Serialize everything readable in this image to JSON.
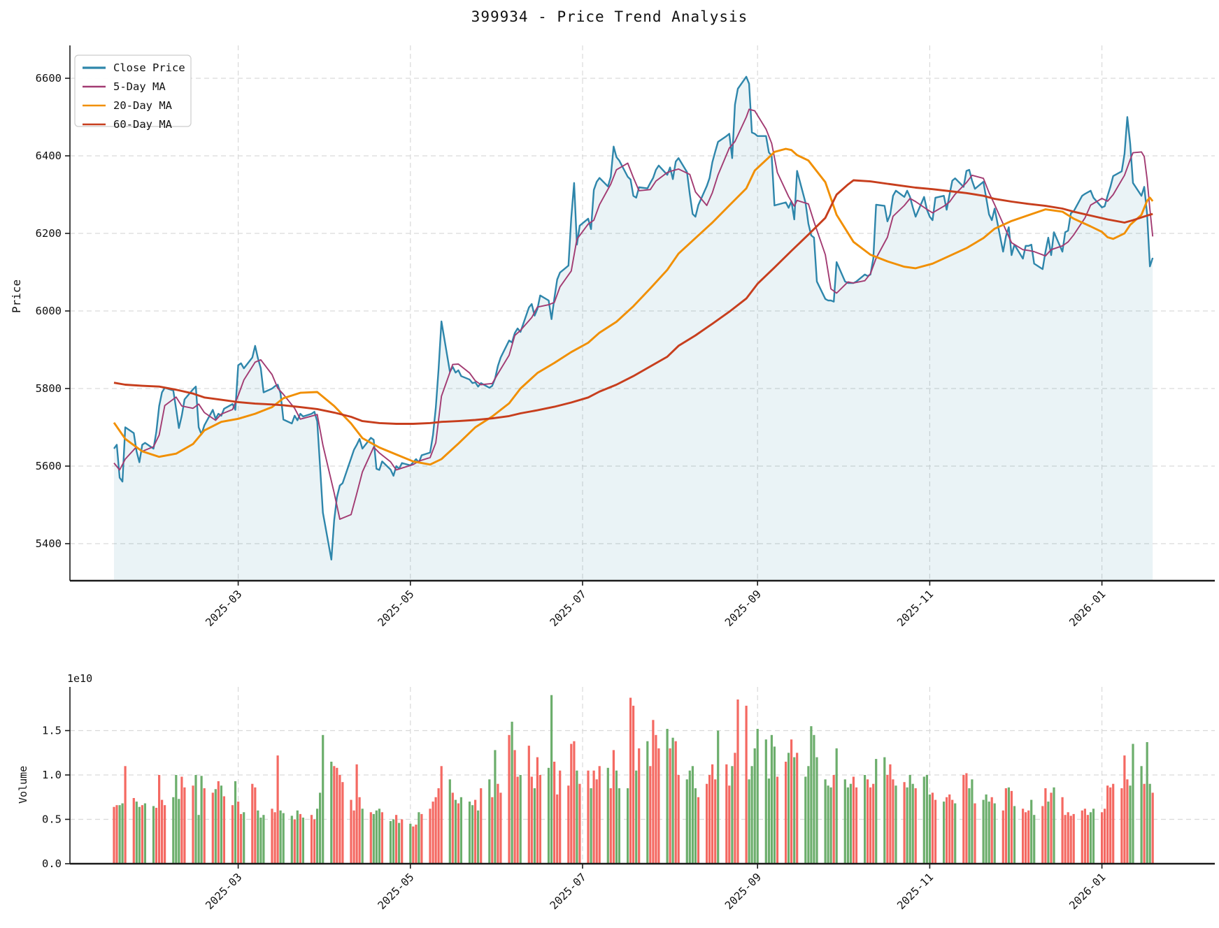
{
  "title": "399934 - Price Trend Analysis",
  "price_chart": {
    "ylabel": "Price",
    "yticks": [
      5400,
      5600,
      5800,
      6000,
      6200,
      6400,
      6600
    ],
    "legend": [
      {
        "label": "Close Price",
        "color": "#2E86AB"
      },
      {
        "label": "5-Day MA",
        "color": "#A23B72"
      },
      {
        "label": "20-Day MA",
        "color": "#F18F01"
      },
      {
        "label": "60-Day MA",
        "color": "#C73E1D"
      }
    ]
  },
  "volume_chart": {
    "ylabel": "Volume",
    "offset_label": "1e10",
    "ytick_labels": [
      "0.0",
      "0.5",
      "1.0",
      "1.5"
    ],
    "ytick_values": [
      0,
      50,
      100,
      150
    ]
  },
  "xticks": [
    {
      "label": "2025-03",
      "day": 44
    },
    {
      "label": "2025-05",
      "day": 105
    },
    {
      "label": "2025-07",
      "day": 166
    },
    {
      "label": "2025-09",
      "day": 228
    },
    {
      "label": "2025-11",
      "day": 289
    },
    {
      "label": "2026-01",
      "day": 350
    }
  ],
  "chart_data": {
    "type": "line+bar",
    "x_mode": "trading-days (5 per week), start 2025-01-16, end 2026-01-22",
    "price_ylim": [
      5300,
      6690
    ],
    "volume_unit": "0.01e10",
    "grid": "dashed",
    "legend_position": "upper-left",
    "colors": {
      "close": "#2E86AB",
      "ma5": "#A23B72",
      "ma20": "#F18F01",
      "ma60": "#C73E1D",
      "area_fill": "rgba(46,134,171,0.10)",
      "vol_up": "#f46962",
      "vol_down": "#6cae6c"
    },
    "close": [
      5645,
      5655,
      5570,
      5560,
      5700,
      5685,
      5638,
      5610,
      5655,
      5660,
      5645,
      5688,
      5755,
      5790,
      5802,
      5795,
      5748,
      5698,
      5730,
      5772,
      5798,
      5805,
      5700,
      5682,
      5705,
      5745,
      5722,
      5735,
      5730,
      5748,
      5760,
      5745,
      5860,
      5865,
      5852,
      5880,
      5910,
      5878,
      5852,
      5790,
      5800,
      5806,
      5810,
      5788,
      5720,
      5710,
      5730,
      5718,
      5735,
      5728,
      5735,
      5740,
      5715,
      5600,
      5480,
      5359,
      5460,
      5520,
      5550,
      5556,
      5620,
      5642,
      5655,
      5670,
      5645,
      5673,
      5668,
      5593,
      5590,
      5612,
      5591,
      5575,
      5600,
      5593,
      5608,
      5602,
      5610,
      5618,
      5609,
      5628,
      5635,
      5680,
      5750,
      5850,
      5973,
      5843,
      5856,
      5841,
      5847,
      5832,
      5823,
      5814,
      5816,
      5805,
      5814,
      5802,
      5807,
      5826,
      5858,
      5880,
      5924,
      5919,
      5943,
      5955,
      5946,
      6009,
      6018,
      5988,
      6005,
      6040,
      6027,
      5979,
      6032,
      6081,
      6099,
      6117,
      6240,
      6330,
      6171,
      6220,
      6238,
      6211,
      6312,
      6333,
      6343,
      6321,
      6346,
      6424,
      6397,
      6388,
      6346,
      6339,
      6297,
      6292,
      6319,
      6316,
      6330,
      6343,
      6364,
      6375,
      6351,
      6370,
      6340,
      6385,
      6394,
      6358,
      6301,
      6250,
      6243,
      6273,
      6322,
      6343,
      6384,
      6411,
      6436,
      6451,
      6457,
      6394,
      6532,
      6573,
      6604,
      6586,
      6460,
      6457,
      6451,
      6451,
      6409,
      6400,
      6272,
      6274,
      6280,
      6266,
      6283,
      6236,
      6361,
      6279,
      6225,
      6195,
      6189,
      6076,
      6031,
      6027,
      6027,
      6024,
      6126,
      6076,
      6072,
      6072,
      6072,
      6076,
      6094,
      6090,
      6094,
      6135,
      6274,
      6271,
      6231,
      6249,
      6297,
      6310,
      6294,
      6310,
      6294,
      6267,
      6243,
      6294,
      6261,
      6243,
      6234,
      6292,
      6297,
      6261,
      6300,
      6336,
      6342,
      6320,
      6361,
      6364,
      6336,
      6315,
      6333,
      6292,
      6249,
      6234,
      6264,
      6153,
      6193,
      6216,
      6144,
      6171,
      6135,
      6168,
      6168,
      6171,
      6122,
      6108,
      6153,
      6189,
      6144,
      6203,
      6153,
      6203,
      6207,
      6252,
      6257,
      6297,
      6302,
      6306,
      6310,
      6292,
      6267,
      6270,
      6297,
      6320,
      6348,
      6360,
      6405,
      6500,
      6432,
      6330,
      6297,
      6320,
      6250,
      6115,
      6137
    ],
    "ma5_keypoints": [
      [
        0,
        5608
      ],
      [
        2,
        5590
      ],
      [
        4,
        5618
      ],
      [
        6,
        5650
      ],
      [
        8,
        5638
      ],
      [
        10,
        5650
      ],
      [
        12,
        5680
      ],
      [
        14,
        5756
      ],
      [
        16,
        5778
      ],
      [
        18,
        5755
      ],
      [
        20,
        5749
      ],
      [
        22,
        5760
      ],
      [
        24,
        5738
      ],
      [
        26,
        5718
      ],
      [
        28,
        5734
      ],
      [
        30,
        5746
      ],
      [
        32,
        5782
      ],
      [
        34,
        5822
      ],
      [
        36,
        5868
      ],
      [
        38,
        5874
      ],
      [
        40,
        5836
      ],
      [
        42,
        5801
      ],
      [
        44,
        5785
      ],
      [
        46,
        5749
      ],
      [
        48,
        5721
      ],
      [
        50,
        5729
      ],
      [
        52,
        5733
      ],
      [
        54,
        5654
      ],
      [
        56,
        5531
      ],
      [
        58,
        5463
      ],
      [
        60,
        5475
      ],
      [
        62,
        5529
      ],
      [
        64,
        5585
      ],
      [
        66,
        5649
      ],
      [
        68,
        5634
      ],
      [
        70,
        5611
      ],
      [
        72,
        5590
      ],
      [
        74,
        5595
      ],
      [
        76,
        5604
      ],
      [
        78,
        5613
      ],
      [
        80,
        5622
      ],
      [
        82,
        5660
      ],
      [
        84,
        5780
      ],
      [
        86,
        5862
      ],
      [
        88,
        5863
      ],
      [
        90,
        5840
      ],
      [
        92,
        5820
      ],
      [
        94,
        5810
      ],
      [
        96,
        5813
      ],
      [
        98,
        5838
      ],
      [
        100,
        5886
      ],
      [
        102,
        5937
      ],
      [
        104,
        5950
      ],
      [
        106,
        5983
      ],
      [
        108,
        6010
      ],
      [
        110,
        6016
      ],
      [
        112,
        6022
      ],
      [
        114,
        6062
      ],
      [
        116,
        6103
      ],
      [
        118,
        6185
      ],
      [
        120,
        6224
      ],
      [
        122,
        6234
      ],
      [
        124,
        6274
      ],
      [
        126,
        6327
      ],
      [
        128,
        6364
      ],
      [
        130,
        6381
      ],
      [
        132,
        6344
      ],
      [
        134,
        6310
      ],
      [
        136,
        6313
      ],
      [
        138,
        6335
      ],
      [
        140,
        6357
      ],
      [
        142,
        6362
      ],
      [
        144,
        6366
      ],
      [
        146,
        6352
      ],
      [
        148,
        6307
      ],
      [
        150,
        6272
      ],
      [
        152,
        6305
      ],
      [
        154,
        6351
      ],
      [
        156,
        6420
      ],
      [
        158,
        6437
      ],
      [
        160,
        6500
      ],
      [
        161,
        6520
      ],
      [
        163,
        6516
      ],
      [
        165,
        6469
      ],
      [
        167,
        6432
      ],
      [
        169,
        6357
      ],
      [
        171,
        6295
      ],
      [
        173,
        6270
      ],
      [
        174,
        6285
      ],
      [
        176,
        6276
      ],
      [
        178,
        6230
      ],
      [
        180,
        6145
      ],
      [
        182,
        6057
      ],
      [
        184,
        6046
      ],
      [
        186,
        6075
      ],
      [
        188,
        6072
      ],
      [
        190,
        6078
      ],
      [
        192,
        6096
      ],
      [
        194,
        6136
      ],
      [
        196,
        6190
      ],
      [
        198,
        6244
      ],
      [
        200,
        6272
      ],
      [
        202,
        6290
      ],
      [
        204,
        6282
      ],
      [
        206,
        6262
      ],
      [
        208,
        6253
      ],
      [
        210,
        6270
      ],
      [
        212,
        6281
      ],
      [
        214,
        6301
      ],
      [
        216,
        6331
      ],
      [
        218,
        6350
      ],
      [
        220,
        6342
      ],
      [
        222,
        6305
      ],
      [
        224,
        6274
      ],
      [
        226,
        6208
      ],
      [
        228,
        6176
      ],
      [
        230,
        6158
      ],
      [
        232,
        6156
      ],
      [
        234,
        6153
      ],
      [
        236,
        6142
      ],
      [
        238,
        6158
      ],
      [
        240,
        6168
      ],
      [
        242,
        6178
      ],
      [
        244,
        6196
      ],
      [
        246,
        6240
      ],
      [
        248,
        6273
      ],
      [
        250,
        6290
      ],
      [
        252,
        6283
      ],
      [
        254,
        6300
      ],
      [
        256,
        6350
      ],
      [
        258,
        6390
      ],
      [
        259,
        6408
      ],
      [
        260,
        6410
      ],
      [
        261,
        6398
      ],
      [
        262,
        6340
      ],
      [
        263,
        6262
      ],
      [
        264,
        6192
      ]
    ],
    "ma20_keypoints": [
      [
        0,
        5712
      ],
      [
        4,
        5670
      ],
      [
        8,
        5638
      ],
      [
        12,
        5624
      ],
      [
        16,
        5632
      ],
      [
        20,
        5657
      ],
      [
        24,
        5692
      ],
      [
        28,
        5714
      ],
      [
        32,
        5722
      ],
      [
        36,
        5735
      ],
      [
        40,
        5752
      ],
      [
        44,
        5775
      ],
      [
        48,
        5789
      ],
      [
        52,
        5791
      ],
      [
        56,
        5755
      ],
      [
        60,
        5710
      ],
      [
        64,
        5672
      ],
      [
        68,
        5648
      ],
      [
        72,
        5630
      ],
      [
        76,
        5612
      ],
      [
        80,
        5604
      ],
      [
        84,
        5618
      ],
      [
        88,
        5658
      ],
      [
        92,
        5700
      ],
      [
        96,
        5728
      ],
      [
        100,
        5762
      ],
      [
        104,
        5800
      ],
      [
        108,
        5840
      ],
      [
        112,
        5866
      ],
      [
        116,
        5894
      ],
      [
        120,
        5918
      ],
      [
        124,
        5944
      ],
      [
        128,
        5972
      ],
      [
        132,
        6012
      ],
      [
        136,
        6058
      ],
      [
        140,
        6106
      ],
      [
        144,
        6148
      ],
      [
        148,
        6188
      ],
      [
        152,
        6228
      ],
      [
        156,
        6272
      ],
      [
        160,
        6316
      ],
      [
        163,
        6362
      ],
      [
        166,
        6396
      ],
      [
        168,
        6410
      ],
      [
        170,
        6418
      ],
      [
        172,
        6415
      ],
      [
        174,
        6402
      ],
      [
        176,
        6388
      ],
      [
        180,
        6332
      ],
      [
        184,
        6248
      ],
      [
        188,
        6178
      ],
      [
        192,
        6145
      ],
      [
        196,
        6128
      ],
      [
        200,
        6114
      ],
      [
        204,
        6110
      ],
      [
        208,
        6122
      ],
      [
        212,
        6142
      ],
      [
        216,
        6162
      ],
      [
        220,
        6188
      ],
      [
        224,
        6212
      ],
      [
        228,
        6232
      ],
      [
        232,
        6247
      ],
      [
        236,
        6262
      ],
      [
        240,
        6256
      ],
      [
        244,
        6238
      ],
      [
        248,
        6218
      ],
      [
        250,
        6204
      ],
      [
        252,
        6190
      ],
      [
        254,
        6186
      ],
      [
        256,
        6200
      ],
      [
        258,
        6222
      ],
      [
        260,
        6248
      ],
      [
        261,
        6266
      ],
      [
        262,
        6284
      ],
      [
        263,
        6292
      ],
      [
        264,
        6283
      ]
    ],
    "ma60_keypoints": [
      [
        0,
        5815
      ],
      [
        4,
        5810
      ],
      [
        8,
        5807
      ],
      [
        12,
        5805
      ],
      [
        16,
        5797
      ],
      [
        20,
        5787
      ],
      [
        24,
        5777
      ],
      [
        28,
        5771
      ],
      [
        32,
        5765
      ],
      [
        36,
        5761
      ],
      [
        40,
        5759
      ],
      [
        44,
        5757
      ],
      [
        48,
        5752
      ],
      [
        52,
        5747
      ],
      [
        56,
        5738
      ],
      [
        60,
        5727
      ],
      [
        64,
        5716
      ],
      [
        68,
        5711
      ],
      [
        72,
        5709
      ],
      [
        76,
        5709
      ],
      [
        80,
        5711
      ],
      [
        84,
        5714
      ],
      [
        88,
        5716
      ],
      [
        92,
        5719
      ],
      [
        96,
        5723
      ],
      [
        100,
        5729
      ],
      [
        104,
        5736
      ],
      [
        108,
        5744
      ],
      [
        112,
        5753
      ],
      [
        116,
        5764
      ],
      [
        120,
        5777
      ],
      [
        124,
        5792
      ],
      [
        128,
        5810
      ],
      [
        132,
        5832
      ],
      [
        136,
        5857
      ],
      [
        140,
        5882
      ],
      [
        144,
        5910
      ],
      [
        148,
        5937
      ],
      [
        152,
        5967
      ],
      [
        156,
        5998
      ],
      [
        160,
        6032
      ],
      [
        164,
        6070
      ],
      [
        168,
        6112
      ],
      [
        172,
        6155
      ],
      [
        176,
        6197
      ],
      [
        180,
        6240
      ],
      [
        182,
        6270
      ],
      [
        184,
        6300
      ],
      [
        186,
        6326
      ],
      [
        188,
        6337
      ],
      [
        192,
        6334
      ],
      [
        196,
        6328
      ],
      [
        200,
        6322
      ],
      [
        204,
        6318
      ],
      [
        208,
        6314
      ],
      [
        212,
        6309
      ],
      [
        216,
        6304
      ],
      [
        220,
        6297
      ],
      [
        224,
        6289
      ],
      [
        228,
        6282
      ],
      [
        232,
        6276
      ],
      [
        236,
        6271
      ],
      [
        240,
        6264
      ],
      [
        244,
        6256
      ],
      [
        248,
        6246
      ],
      [
        252,
        6236
      ],
      [
        256,
        6228
      ],
      [
        259,
        6234
      ],
      [
        262,
        6246
      ],
      [
        264,
        6250
      ]
    ],
    "volume": [
      64,
      66,
      66,
      68,
      110,
      74,
      70,
      64,
      66,
      68,
      65,
      63,
      100,
      72,
      66,
      75,
      100,
      73,
      98,
      86,
      88,
      100,
      55,
      99,
      85,
      80,
      84,
      93,
      88,
      76,
      66,
      93,
      70,
      56,
      58,
      90,
      86,
      60,
      52,
      55,
      62,
      58,
      122,
      60,
      57,
      54,
      50,
      60,
      56,
      52,
      55,
      50,
      62,
      80,
      145,
      115,
      110,
      108,
      100,
      92,
      72,
      60,
      112,
      75,
      62,
      58,
      56,
      60,
      62,
      58,
      48,
      50,
      55,
      46,
      50,
      45,
      42,
      44,
      58,
      56,
      62,
      70,
      75,
      85,
      110,
      95,
      80,
      72,
      68,
      75,
      70,
      66,
      72,
      60,
      85,
      95,
      75,
      128,
      90,
      80,
      145,
      160,
      128,
      98,
      100,
      133,
      98,
      85,
      120,
      100,
      108,
      190,
      115,
      78,
      105,
      88,
      135,
      138,
      105,
      90,
      105,
      85,
      105,
      95,
      110,
      108,
      85,
      128,
      105,
      85,
      85,
      187,
      178,
      105,
      130,
      138,
      110,
      162,
      145,
      130,
      152,
      130,
      142,
      138,
      100,
      95,
      105,
      110,
      85,
      75,
      90,
      100,
      112,
      95,
      150,
      112,
      88,
      110,
      125,
      185,
      178,
      95,
      110,
      130,
      152,
      140,
      96,
      145,
      132,
      98,
      115,
      125,
      140,
      120,
      125,
      98,
      110,
      155,
      145,
      120,
      95,
      88,
      86,
      100,
      130,
      95,
      86,
      90,
      98,
      86,
      100,
      95,
      86,
      90,
      118,
      120,
      100,
      112,
      95,
      88,
      92,
      86,
      100,
      90,
      85,
      98,
      100,
      78,
      80,
      72,
      70,
      75,
      78,
      72,
      68,
      100,
      102,
      85,
      95,
      68,
      72,
      78,
      70,
      75,
      68,
      60,
      85,
      86,
      82,
      65,
      62,
      58,
      60,
      72,
      55,
      65,
      85,
      70,
      80,
      86,
      75,
      55,
      58,
      54,
      56,
      60,
      62,
      55,
      58,
      62,
      58,
      62,
      88,
      86,
      90,
      85,
      122,
      95,
      88,
      135,
      110,
      90,
      137,
      90,
      80
    ],
    "volume_colors": "rrggrrggrggrrrrgggrrrgggrrgrgrrgrrgrrgggrrrgggrgrgrrggggrrrrrrrrgrgggrggrgrgrrgrrrrrrgrgrgggrgrgrgrrrgrrgrrgrrggrrrrrrgrrgrrrgrrgggrrgrgrrrrgrgrrggggrrrrrgrrgrrrggggggggrrgrgrggggggggrggggrrgrrrggrrrgrgggrgggrrgrrrgrrggrgggrgrrgrgrrrggrrgrgrrrrrrrrggrrrrrrrrgggrggr"
  }
}
